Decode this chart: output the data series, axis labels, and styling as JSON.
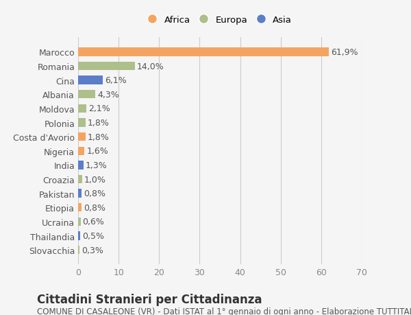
{
  "countries": [
    "Marocco",
    "Romania",
    "Cina",
    "Albania",
    "Moldova",
    "Polonia",
    "Costa d'Avorio",
    "Nigeria",
    "India",
    "Croazia",
    "Pakistan",
    "Etiopia",
    "Ucraina",
    "Thailandia",
    "Slovacchia"
  ],
  "values": [
    61.9,
    14.0,
    6.1,
    4.3,
    2.1,
    1.8,
    1.8,
    1.6,
    1.3,
    1.0,
    0.8,
    0.8,
    0.6,
    0.5,
    0.3
  ],
  "labels": [
    "61,9%",
    "14,0%",
    "6,1%",
    "4,3%",
    "2,1%",
    "1,8%",
    "1,8%",
    "1,6%",
    "1,3%",
    "1,0%",
    "0,8%",
    "0,8%",
    "0,6%",
    "0,5%",
    "0,3%"
  ],
  "continents": [
    "Africa",
    "Europa",
    "Asia",
    "Europa",
    "Europa",
    "Europa",
    "Africa",
    "Africa",
    "Asia",
    "Europa",
    "Asia",
    "Africa",
    "Europa",
    "Asia",
    "Europa"
  ],
  "colors": {
    "Africa": "#F4A460",
    "Europa": "#ADBF8A",
    "Asia": "#5B7EC9"
  },
  "title": "Cittadini Stranieri per Cittadinanza",
  "subtitle": "COMUNE DI CASALEONE (VR) - Dati ISTAT al 1° gennaio di ogni anno - Elaborazione TUTTITALIA.IT",
  "xlim": [
    0,
    70
  ],
  "xticks": [
    0,
    10,
    20,
    30,
    40,
    50,
    60,
    70
  ],
  "background_color": "#f5f5f5",
  "bar_height": 0.6,
  "label_fontsize": 9,
  "title_fontsize": 12,
  "subtitle_fontsize": 8.5,
  "tick_fontsize": 9
}
